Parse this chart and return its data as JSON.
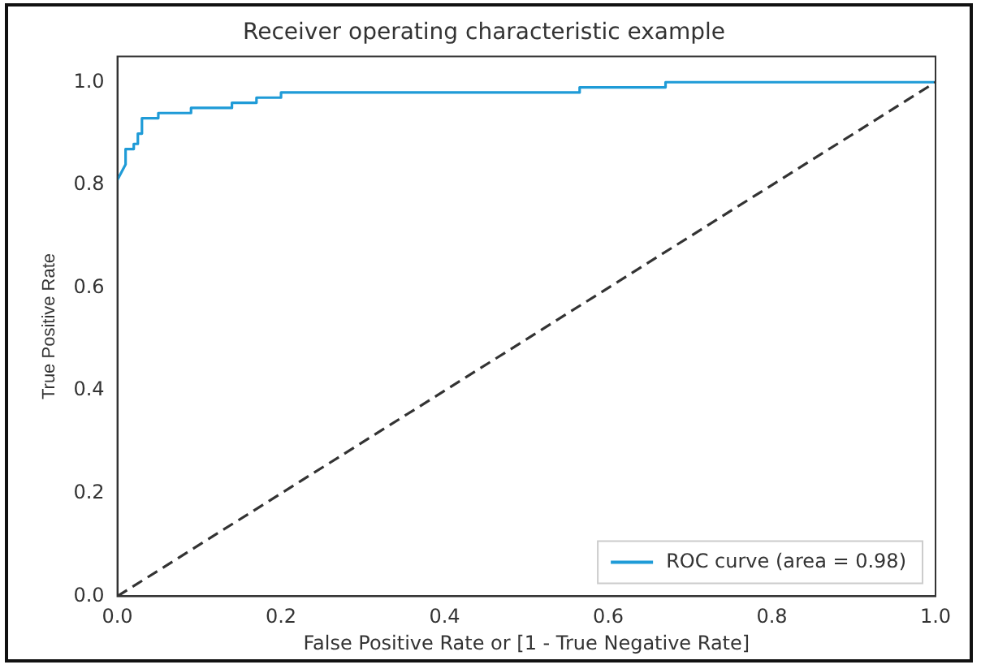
{
  "chart_data": {
    "type": "line",
    "title": "Receiver operating characteristic example",
    "xlabel": "False Positive Rate or [1 - True Negative Rate]",
    "ylabel": "True Positive Rate",
    "xlim": [
      0,
      1
    ],
    "ylim": [
      0,
      1.05
    ],
    "xticks": [
      {
        "value": 0,
        "label": "0.0"
      },
      {
        "value": 0.2,
        "label": "0.2"
      },
      {
        "value": 0.4,
        "label": "0.4"
      },
      {
        "value": 0.6,
        "label": "0.6"
      },
      {
        "value": 0.8,
        "label": "0.8"
      },
      {
        "value": 1,
        "label": "1.0"
      }
    ],
    "yticks": [
      {
        "value": 0,
        "label": "0.0"
      },
      {
        "value": 0.2,
        "label": "0.2"
      },
      {
        "value": 0.4,
        "label": "0.4"
      },
      {
        "value": 0.6,
        "label": "0.6"
      },
      {
        "value": 0.8,
        "label": "0.8"
      },
      {
        "value": 1,
        "label": "1.0"
      }
    ],
    "grid": false,
    "legend": "bottom right",
    "marker": "none",
    "series": [
      {
        "name": "ROC curve (area = 0.98)",
        "color": "#1f9bd7",
        "line_style": "solid",
        "x": [
          0,
          0.01,
          0.01,
          0.02,
          0.02,
          0.025,
          0.025,
          0.03,
          0.03,
          0.05,
          0.05,
          0.09,
          0.09,
          0.14,
          0.14,
          0.17,
          0.17,
          0.2,
          0.2,
          0.565,
          0.565,
          0.67,
          0.67,
          1
        ],
        "values": [
          0.81,
          0.84,
          0.87,
          0.87,
          0.88,
          0.88,
          0.9,
          0.9,
          0.93,
          0.93,
          0.94,
          0.94,
          0.95,
          0.95,
          0.96,
          0.96,
          0.97,
          0.97,
          0.98,
          0.98,
          0.99,
          0.99,
          1,
          1
        ]
      },
      {
        "color": "#333333",
        "line_style": "dashed",
        "x": [
          0,
          1
        ],
        "values": [
          0,
          1
        ]
      }
    ]
  }
}
